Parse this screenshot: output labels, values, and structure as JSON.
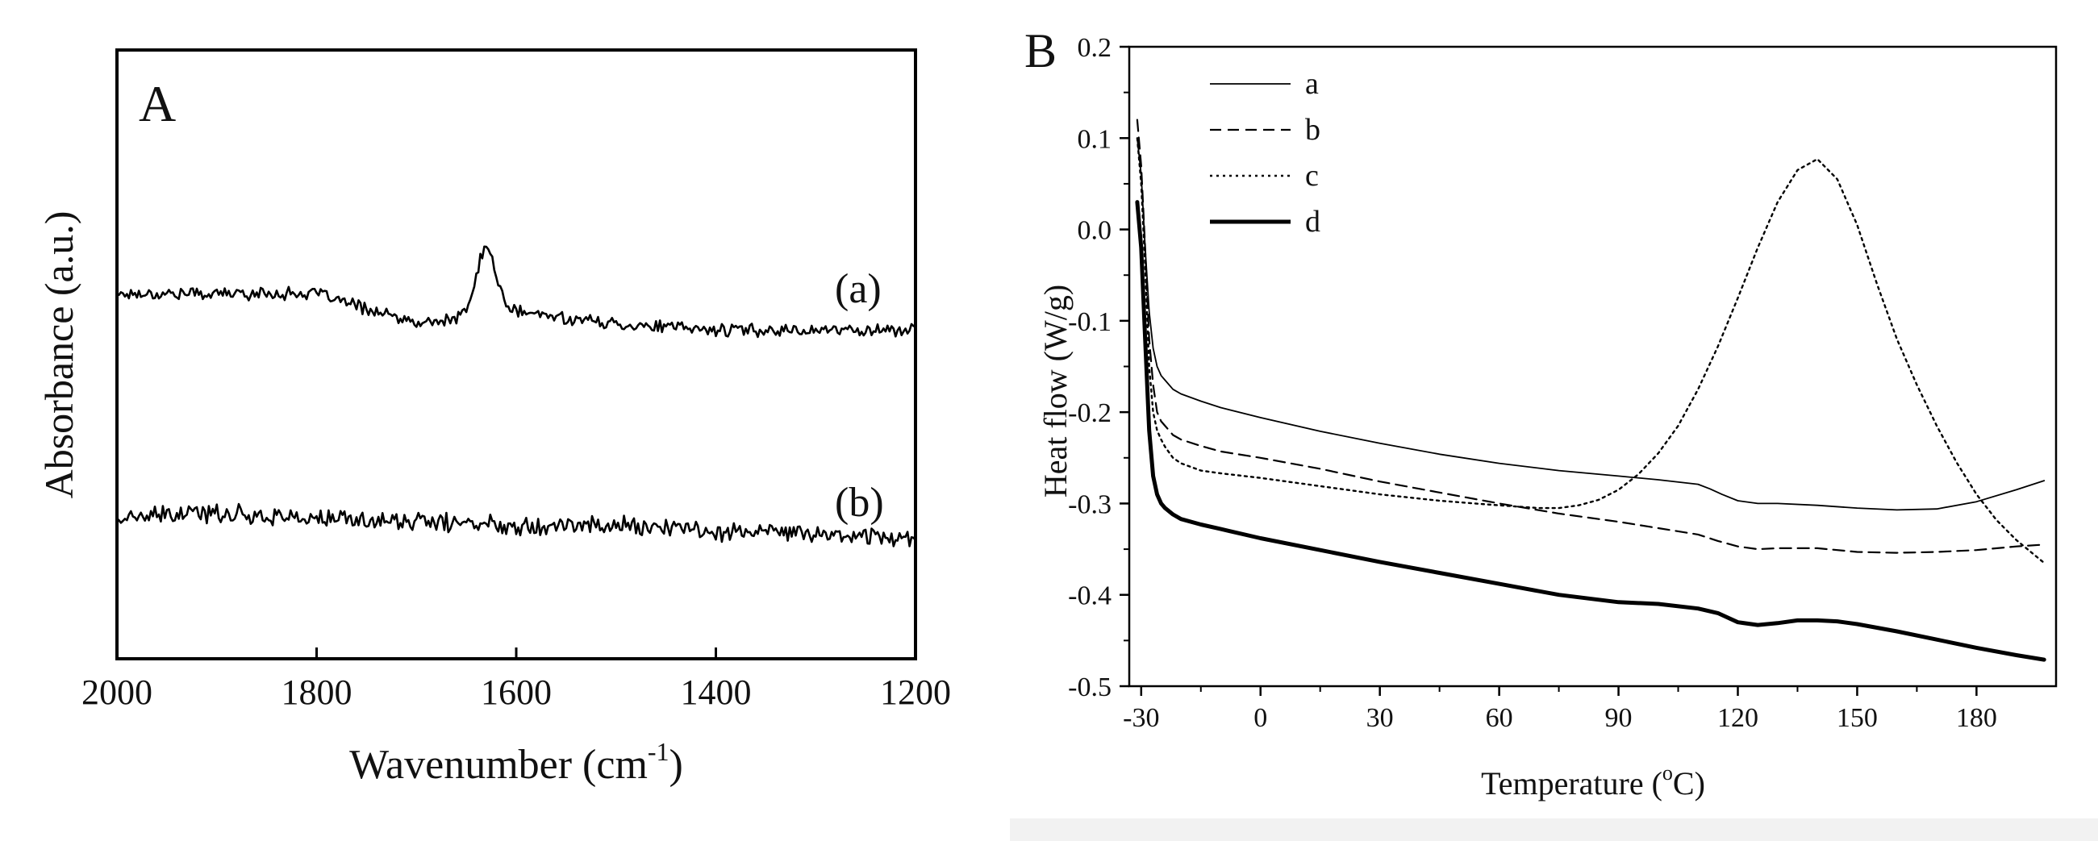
{
  "chart_data": [
    {
      "panel": "A",
      "type": "line",
      "title": "",
      "panel_label": "A",
      "xlabel": "Wavenumber (cm",
      "xlabel_sup": "-1",
      "xlabel_end": ")",
      "ylabel": "Absorbance (a.u.)",
      "xlim": [
        2000,
        1200
      ],
      "x_reversed": true,
      "y_ticks_shown": false,
      "xticks": [
        2000,
        1800,
        1600,
        1400,
        1200
      ],
      "xtick_labels": [
        "2000",
        "1800",
        "1600",
        "1400",
        "1200"
      ],
      "ylim": [
        0,
        1
      ],
      "series": [
        {
          "name": "(a)",
          "label": "(a)",
          "baseline": [
            [
              2000,
              0.6
            ],
            [
              1900,
              0.6
            ],
            [
              1800,
              0.6
            ],
            [
              1700,
              0.55
            ],
            [
              1600,
              0.57
            ],
            [
              1500,
              0.55
            ],
            [
              1400,
              0.54
            ],
            [
              1300,
              0.54
            ],
            [
              1200,
              0.54
            ]
          ],
          "peak": {
            "x": 1630,
            "height": 0.11,
            "width": 14
          },
          "noise": 0.008
        },
        {
          "name": "(b)",
          "label": "(b)",
          "baseline": [
            [
              2000,
              0.23
            ],
            [
              1900,
              0.24
            ],
            [
              1800,
              0.23
            ],
            [
              1700,
              0.225
            ],
            [
              1600,
              0.22
            ],
            [
              1500,
              0.22
            ],
            [
              1400,
              0.21
            ],
            [
              1300,
              0.205
            ],
            [
              1200,
              0.2
            ]
          ],
          "peak": null,
          "noise": 0.012
        }
      ]
    },
    {
      "panel": "B",
      "type": "line",
      "title": "",
      "panel_label": "B",
      "xlabel": "Temperature (",
      "xlabel_sup": "o",
      "xlabel_end": "C)",
      "ylabel": "Heat flow (W/g)",
      "xlim": [
        -33,
        200
      ],
      "ylim": [
        -0.5,
        0.2
      ],
      "xticks": [
        -30,
        0,
        30,
        60,
        90,
        120,
        150,
        180
      ],
      "xtick_labels": [
        "-30",
        "0",
        "30",
        "60",
        "90",
        "120",
        "150",
        "180"
      ],
      "yticks": [
        0.2,
        0.1,
        0.0,
        -0.1,
        -0.2,
        -0.3,
        -0.4,
        -0.5
      ],
      "ytick_labels": [
        "0.2",
        "0.1",
        "0.0",
        "-0.1",
        "-0.2",
        "-0.3",
        "-0.4",
        "-0.5"
      ],
      "legend": [
        "a",
        "b",
        "c",
        "d"
      ],
      "legend_position": "top-left",
      "series": [
        {
          "name": "a",
          "style": "solid",
          "x": [
            -31,
            -30,
            -29,
            -28,
            -27,
            -26,
            -25,
            -24,
            -22,
            -20,
            -15,
            -10,
            0,
            15,
            30,
            45,
            60,
            75,
            90,
            100,
            110,
            113,
            116,
            120,
            125,
            130,
            140,
            150,
            160,
            170,
            180,
            190,
            197
          ],
          "y": [
            0.1,
            0.06,
            -0.02,
            -0.09,
            -0.13,
            -0.15,
            -0.16,
            -0.165,
            -0.175,
            -0.18,
            -0.188,
            -0.195,
            -0.206,
            -0.221,
            -0.234,
            -0.246,
            -0.256,
            -0.264,
            -0.27,
            -0.274,
            -0.279,
            -0.284,
            -0.29,
            -0.297,
            -0.3,
            -0.3,
            -0.302,
            -0.305,
            -0.307,
            -0.306,
            -0.298,
            -0.285,
            -0.275
          ]
        },
        {
          "name": "b",
          "style": "dashed",
          "x": [
            -31,
            -30,
            -29,
            -28,
            -27,
            -26,
            -25,
            -24,
            -22,
            -20,
            -15,
            -10,
            0,
            15,
            30,
            45,
            60,
            75,
            90,
            100,
            110,
            115,
            120,
            125,
            130,
            140,
            150,
            160,
            170,
            180,
            190,
            197
          ],
          "y": [
            0.12,
            0.07,
            -0.02,
            -0.12,
            -0.17,
            -0.2,
            -0.21,
            -0.215,
            -0.225,
            -0.23,
            -0.237,
            -0.243,
            -0.25,
            -0.262,
            -0.276,
            -0.288,
            -0.3,
            -0.311,
            -0.32,
            -0.327,
            -0.334,
            -0.341,
            -0.347,
            -0.35,
            -0.349,
            -0.349,
            -0.353,
            -0.354,
            -0.353,
            -0.351,
            -0.347,
            -0.345
          ]
        },
        {
          "name": "c",
          "style": "dotted",
          "x": [
            -31,
            -30,
            -29,
            -28,
            -27,
            -26,
            -25,
            -24,
            -22,
            -20,
            -15,
            -10,
            0,
            15,
            30,
            45,
            60,
            70,
            75,
            80,
            85,
            90,
            95,
            100,
            105,
            110,
            115,
            120,
            125,
            130,
            135,
            140,
            145,
            150,
            155,
            160,
            165,
            170,
            175,
            180,
            185,
            190,
            197
          ],
          "y": [
            0.1,
            0.05,
            -0.04,
            -0.15,
            -0.2,
            -0.22,
            -0.23,
            -0.238,
            -0.25,
            -0.256,
            -0.264,
            -0.267,
            -0.272,
            -0.281,
            -0.29,
            -0.297,
            -0.302,
            -0.305,
            -0.305,
            -0.302,
            -0.296,
            -0.285,
            -0.268,
            -0.245,
            -0.215,
            -0.175,
            -0.128,
            -0.075,
            -0.02,
            0.03,
            0.065,
            0.077,
            0.055,
            0.005,
            -0.06,
            -0.12,
            -0.17,
            -0.215,
            -0.255,
            -0.29,
            -0.318,
            -0.34,
            -0.365
          ]
        },
        {
          "name": "d",
          "style": "thick",
          "x": [
            -31,
            -30,
            -29,
            -28,
            -27,
            -26,
            -25,
            -24,
            -22,
            -20,
            -15,
            -10,
            0,
            15,
            30,
            45,
            60,
            75,
            90,
            100,
            110,
            115,
            120,
            125,
            130,
            135,
            140,
            145,
            150,
            160,
            170,
            180,
            190,
            197
          ],
          "y": [
            0.03,
            -0.02,
            -0.12,
            -0.22,
            -0.27,
            -0.29,
            -0.3,
            -0.305,
            -0.312,
            -0.317,
            -0.323,
            -0.328,
            -0.338,
            -0.351,
            -0.364,
            -0.376,
            -0.388,
            -0.4,
            -0.408,
            -0.41,
            -0.415,
            -0.42,
            -0.43,
            -0.433,
            -0.431,
            -0.428,
            -0.428,
            -0.429,
            -0.432,
            -0.44,
            -0.449,
            -0.458,
            -0.466,
            -0.471
          ]
        }
      ]
    }
  ]
}
